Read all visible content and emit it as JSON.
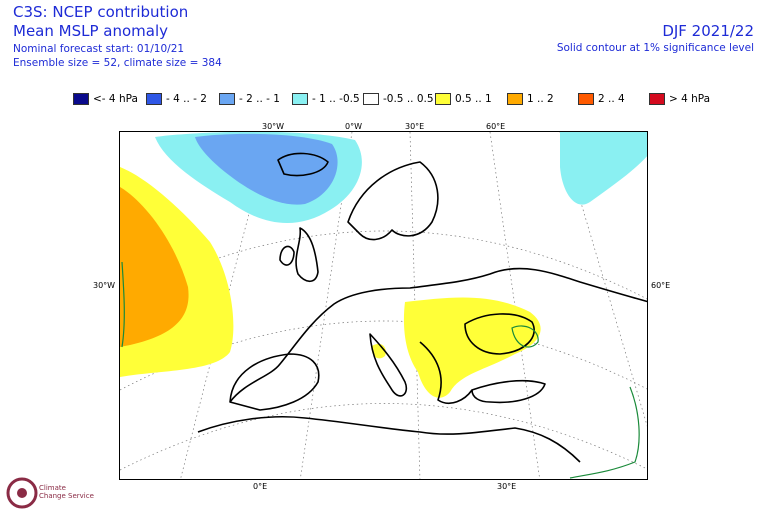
{
  "header": {
    "title": "C3S: NCEP contribution",
    "subtitle": "Mean MSLP anomaly",
    "forecast_start": "Nominal forecast start: 01/10/21",
    "ensemble": "Ensemble size = 52, climate size = 384",
    "season": "DJF 2021/22",
    "significance": "Solid contour at 1% significance level"
  },
  "legend": [
    {
      "label": "<- 4 hPa",
      "color": "#0a0a8c"
    },
    {
      "label": "- 4 .. - 2",
      "color": "#2f57e6"
    },
    {
      "label": "- 2 .. - 1",
      "color": "#6aa6f2"
    },
    {
      "label": "- 1 .. -0.5",
      "color": "#8af0f2"
    },
    {
      "label": "-0.5 .. 0.5",
      "color": "#ffffff"
    },
    {
      "label": "0.5 .. 1",
      "color": "#ffff38"
    },
    {
      "label": "1 .. 2",
      "color": "#ffaa00"
    },
    {
      "label": "2 .. 4",
      "color": "#ff5a00"
    },
    {
      "label": "> 4 hPa",
      "color": "#d40a1e"
    }
  ],
  "map": {
    "coord_labels": {
      "top_30w": "30°W",
      "top_0w": "0°W",
      "top_30e": "30°E",
      "top_60e": "60°E",
      "left_30w": "30°W",
      "right_60e": "60°E",
      "bottom_0e": "0°E",
      "bottom_30e": "30°E"
    },
    "significance_color": "#1a8a3a"
  },
  "logo": {
    "line1": "Climate",
    "line2": "Change Service"
  }
}
